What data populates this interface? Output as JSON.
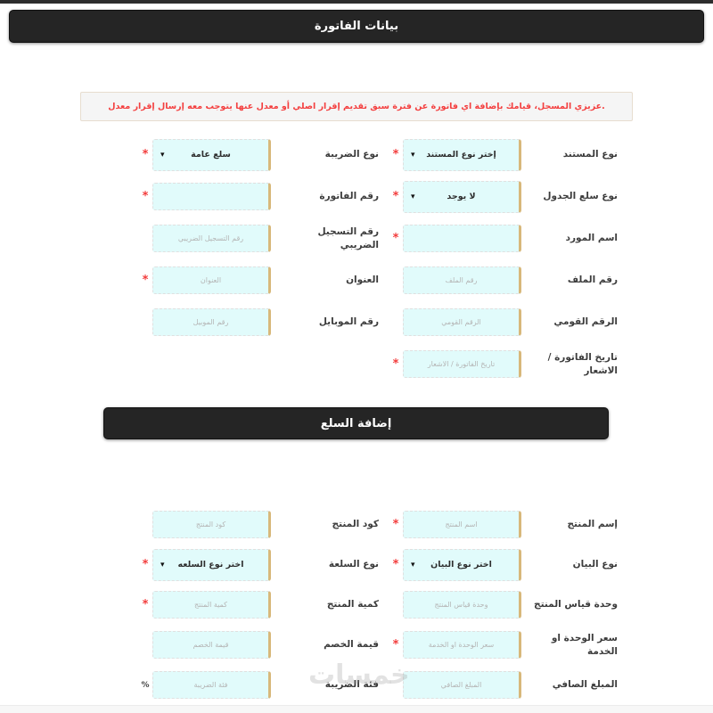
{
  "page": {
    "watermark": "خمسات"
  },
  "icons": {
    "chevron_down": "▾"
  },
  "marks": {
    "required": "*",
    "percent": "%"
  },
  "sections": [
    {
      "title": "بيانات الفاتورة",
      "warning": "عزيزي المسجل، قيامك بإضافة اي فاتورة عن فترة سبق تقديم إقرار اصلي أو معدل عنها يتوجب معه إرسال إقرار معدل.",
      "rows": [
        {
          "right": {
            "id": "document-type",
            "label": "نوع المستند",
            "type": "select",
            "value": "إختر نوع المستند",
            "required": true
          },
          "left": {
            "id": "tax-type",
            "label": "نوع الضريبة",
            "type": "select",
            "value": "سلع عامة",
            "required": true
          }
        },
        {
          "right": {
            "id": "table-goods-type",
            "label": "نوع سلع الجدول",
            "type": "select",
            "value": "لا يوجد",
            "required": true
          },
          "left": {
            "id": "invoice-number",
            "label": "رقم الفاتورة",
            "type": "input",
            "placeholder": "",
            "required": true
          }
        },
        {
          "right": {
            "id": "supplier-name",
            "label": "اسم المورد",
            "type": "input",
            "placeholder": "",
            "required": true
          },
          "left": {
            "id": "tax-registration-number",
            "label": "رقم التسجيل الضريبي",
            "type": "input",
            "placeholder": "رقم التسجيل الضريبي",
            "required": false
          }
        },
        {
          "right": {
            "id": "file-number",
            "label": "رقم الملف",
            "type": "input",
            "placeholder": "رقم الملف",
            "required": false
          },
          "left": {
            "id": "address",
            "label": "العنوان",
            "type": "input",
            "placeholder": "العنوان",
            "required": true
          }
        },
        {
          "right": {
            "id": "national-id",
            "label": "الرقم القومي",
            "type": "input",
            "placeholder": "الرقم القومي",
            "required": false
          },
          "left": {
            "id": "mobile-number",
            "label": "رقم الموبايل",
            "type": "input",
            "placeholder": "رقم الموبيل",
            "required": false
          }
        },
        {
          "right": {
            "id": "invoice-date",
            "label": "تاريخ الفاتورة / الاشعار",
            "type": "input",
            "placeholder": "تاريخ الفاتورة / الاشعار",
            "required": true
          },
          "left": null
        }
      ]
    },
    {
      "title": "إضافة السلع",
      "rows": [
        {
          "right": {
            "id": "product-name",
            "label": "إسم المنتج",
            "type": "input",
            "placeholder": "اسم المنتج",
            "required": true
          },
          "left": {
            "id": "product-code",
            "label": "كود المنتج",
            "type": "input",
            "placeholder": "كود المنتج",
            "required": false
          }
        },
        {
          "right": {
            "id": "statement-type",
            "label": "نوع البيان",
            "type": "select",
            "value": "اختر نوع البيان",
            "required": true
          },
          "left": {
            "id": "goods-type",
            "label": "نوع السلعة",
            "type": "select",
            "value": "اختر نوع السلعه",
            "required": true
          }
        },
        {
          "right": {
            "id": "product-unit",
            "label": "وحدة قياس المنتج",
            "type": "input",
            "placeholder": "وحدة قياس المنتج",
            "required": false
          },
          "left": {
            "id": "product-quantity",
            "label": "كمية المنتج",
            "type": "input",
            "placeholder": "كمية المنتج",
            "required": true
          }
        },
        {
          "right": {
            "id": "unit-price",
            "label": "سعر الوحدة او الخدمة",
            "type": "input",
            "placeholder": "سعر الوحدة او الخدمة",
            "required": true
          },
          "left": {
            "id": "discount-value",
            "label": "قيمة الخصم",
            "type": "input",
            "placeholder": "قيمة الخصم",
            "required": false
          }
        },
        {
          "right": {
            "id": "net-amount",
            "label": "المبلغ الصافي",
            "type": "input",
            "placeholder": "المبلغ الصافي",
            "required": false
          },
          "left": {
            "id": "tax-category",
            "label": "فئة الضريبة",
            "type": "input",
            "placeholder": "فئة الضريبة",
            "required": false,
            "suffix": "%"
          }
        }
      ]
    }
  ]
}
